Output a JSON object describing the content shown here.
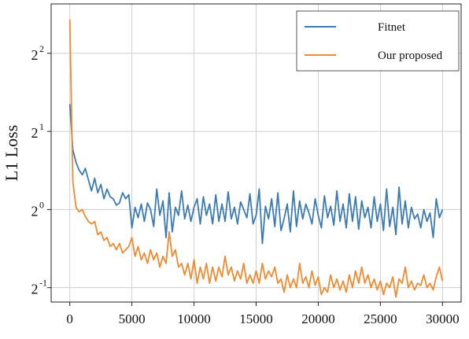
{
  "chart_data": {
    "type": "line",
    "title": "",
    "xlabel": "",
    "ylabel": "L1 Loss",
    "y_scale": "log2",
    "xlim": [
      -1500,
      31500
    ],
    "ylim": [
      0.44,
      6.2
    ],
    "grid": true,
    "legend_position": "top-right",
    "x_ticks": [
      0,
      5000,
      10000,
      15000,
      20000,
      25000,
      30000
    ],
    "x_tick_labels": [
      "0",
      "5000",
      "10000",
      "15000",
      "20000",
      "25000",
      "30000"
    ],
    "y_ticks": [
      0.5,
      1,
      2,
      4
    ],
    "y_tick_labels": [
      {
        "base": "2",
        "exp": "-1"
      },
      {
        "base": "2",
        "exp": "0"
      },
      {
        "base": "2",
        "exp": "1"
      },
      {
        "base": "2",
        "exp": "2"
      }
    ],
    "series": [
      {
        "name": "Fitnet",
        "color": "#3b7bb5",
        "x": [
          0,
          250,
          500,
          750,
          1000,
          1250,
          1500,
          1750,
          2000,
          2250,
          2500,
          2750,
          3000,
          3250,
          3500,
          3750,
          4000,
          4250,
          4500,
          4750,
          5000,
          5250,
          5500,
          5750,
          6000,
          6250,
          6500,
          6750,
          7000,
          7250,
          7500,
          7750,
          8000,
          8250,
          8500,
          8750,
          9000,
          9250,
          9500,
          9750,
          10000,
          10250,
          10500,
          10750,
          11000,
          11250,
          11500,
          11750,
          12000,
          12250,
          12500,
          12750,
          13000,
          13250,
          13500,
          13750,
          14000,
          14250,
          14500,
          14750,
          15000,
          15250,
          15500,
          15750,
          16000,
          16250,
          16500,
          16750,
          17000,
          17250,
          17500,
          17750,
          18000,
          18250,
          18500,
          18750,
          19000,
          19250,
          19500,
          19750,
          20000,
          20250,
          20500,
          20750,
          21000,
          21250,
          21500,
          21750,
          22000,
          22250,
          22500,
          22750,
          23000,
          23250,
          23500,
          23750,
          24000,
          24250,
          24500,
          24750,
          25000,
          25250,
          25500,
          25750,
          26000,
          26250,
          26500,
          26750,
          27000,
          27250,
          27500,
          27750,
          28000,
          28250,
          28500,
          28750,
          29000,
          29250,
          29500,
          29750,
          30000
        ],
        "values": [
          2.55,
          1.7,
          1.52,
          1.42,
          1.36,
          1.44,
          1.3,
          1.18,
          1.32,
          1.16,
          1.25,
          1.1,
          1.2,
          1.12,
          1.1,
          1.04,
          1.06,
          1.16,
          1.1,
          1.14,
          0.85,
          1.02,
          0.93,
          1.05,
          0.9,
          1.06,
          1.0,
          0.86,
          1.2,
          0.95,
          1.08,
          0.78,
          1.16,
          0.82,
          1.02,
          0.95,
          1.18,
          0.92,
          1.04,
          0.9,
          1.02,
          1.1,
          0.88,
          1.12,
          0.95,
          1.05,
          0.88,
          1.14,
          0.9,
          1.05,
          0.9,
          1.17,
          0.92,
          1.02,
          0.88,
          1.07,
          1.0,
          0.93,
          1.15,
          0.88,
          0.95,
          1.2,
          0.74,
          1.03,
          0.92,
          1.1,
          0.86,
          1.16,
          0.83,
          0.92,
          1.05,
          0.82,
          1.18,
          0.86,
          1.08,
          0.92,
          1.05,
          0.97,
          0.88,
          1.1,
          0.95,
          0.85,
          1.13,
          0.93,
          1.03,
          0.87,
          1.18,
          0.9,
          1.05,
          0.85,
          1.15,
          0.9,
          1.12,
          0.84,
          1.08,
          0.93,
          1.02,
          0.85,
          1.12,
          0.9,
          1.05,
          0.83,
          1.2,
          0.86,
          1.02,
          0.8,
          1.22,
          0.88,
          1.08,
          0.85,
          1.02,
          0.92,
          0.96,
          0.85,
          1.0,
          0.9,
          0.97,
          0.78,
          1.1,
          0.93,
          1.0
        ],
        "hidden_tail_note": ""
      },
      {
        "name": "Our proposed",
        "color": "#f28a30",
        "x": [
          0,
          250,
          500,
          750,
          1000,
          1250,
          1500,
          1750,
          2000,
          2250,
          2500,
          2750,
          3000,
          3250,
          3500,
          3750,
          4000,
          4250,
          4500,
          4750,
          5000,
          5250,
          5500,
          5750,
          6000,
          6250,
          6500,
          6750,
          7000,
          7250,
          7500,
          7750,
          8000,
          8250,
          8500,
          8750,
          9000,
          9250,
          9500,
          9750,
          10000,
          10250,
          10500,
          10750,
          11000,
          11250,
          11500,
          11750,
          12000,
          12250,
          12500,
          12750,
          13000,
          13250,
          13500,
          13750,
          14000,
          14250,
          14500,
          14750,
          15000,
          15250,
          15500,
          15750,
          16000,
          16250,
          16500,
          16750,
          17000,
          17250,
          17500,
          17750,
          18000,
          18250,
          18500,
          18750,
          19000,
          19250,
          19500,
          19750,
          20000,
          20250,
          20500,
          20750,
          21000,
          21250,
          21500,
          21750,
          22000,
          22250,
          22500,
          22750,
          23000,
          23250,
          23500,
          23750,
          24000,
          24250,
          24500,
          24750,
          25000,
          25250,
          25500,
          25750,
          26000,
          26250,
          26500,
          26750,
          27000,
          27250,
          27500,
          27750,
          28000,
          28250,
          28500,
          28750,
          29000,
          29250,
          29500,
          29750,
          30000
        ],
        "values": [
          5.4,
          1.28,
          1.02,
          0.98,
          1.0,
          0.94,
          0.9,
          0.88,
          0.9,
          0.8,
          0.82,
          0.76,
          0.78,
          0.72,
          0.74,
          0.7,
          0.74,
          0.68,
          0.7,
          0.72,
          0.78,
          0.66,
          0.72,
          0.64,
          0.68,
          0.62,
          0.7,
          0.64,
          0.68,
          0.6,
          0.66,
          0.62,
          0.82,
          0.66,
          0.7,
          0.6,
          0.62,
          0.56,
          0.62,
          0.54,
          0.64,
          0.52,
          0.6,
          0.54,
          0.62,
          0.52,
          0.6,
          0.53,
          0.6,
          0.55,
          0.66,
          0.56,
          0.6,
          0.53,
          0.58,
          0.54,
          0.62,
          0.52,
          0.56,
          0.52,
          0.58,
          0.52,
          0.62,
          0.54,
          0.58,
          0.55,
          0.6,
          0.52,
          0.54,
          0.48,
          0.56,
          0.5,
          0.54,
          0.5,
          0.62,
          0.52,
          0.55,
          0.5,
          0.58,
          0.51,
          0.55,
          0.47,
          0.5,
          0.48,
          0.56,
          0.5,
          0.54,
          0.49,
          0.53,
          0.48,
          0.56,
          0.5,
          0.58,
          0.52,
          0.6,
          0.52,
          0.56,
          0.5,
          0.54,
          0.49,
          0.53,
          0.47,
          0.52,
          0.5,
          0.55,
          0.46,
          0.54,
          0.52,
          0.6,
          0.5,
          0.53,
          0.49,
          0.52,
          0.51,
          0.56,
          0.5,
          0.52,
          0.49,
          0.55,
          0.6,
          0.53
        ]
      }
    ]
  }
}
